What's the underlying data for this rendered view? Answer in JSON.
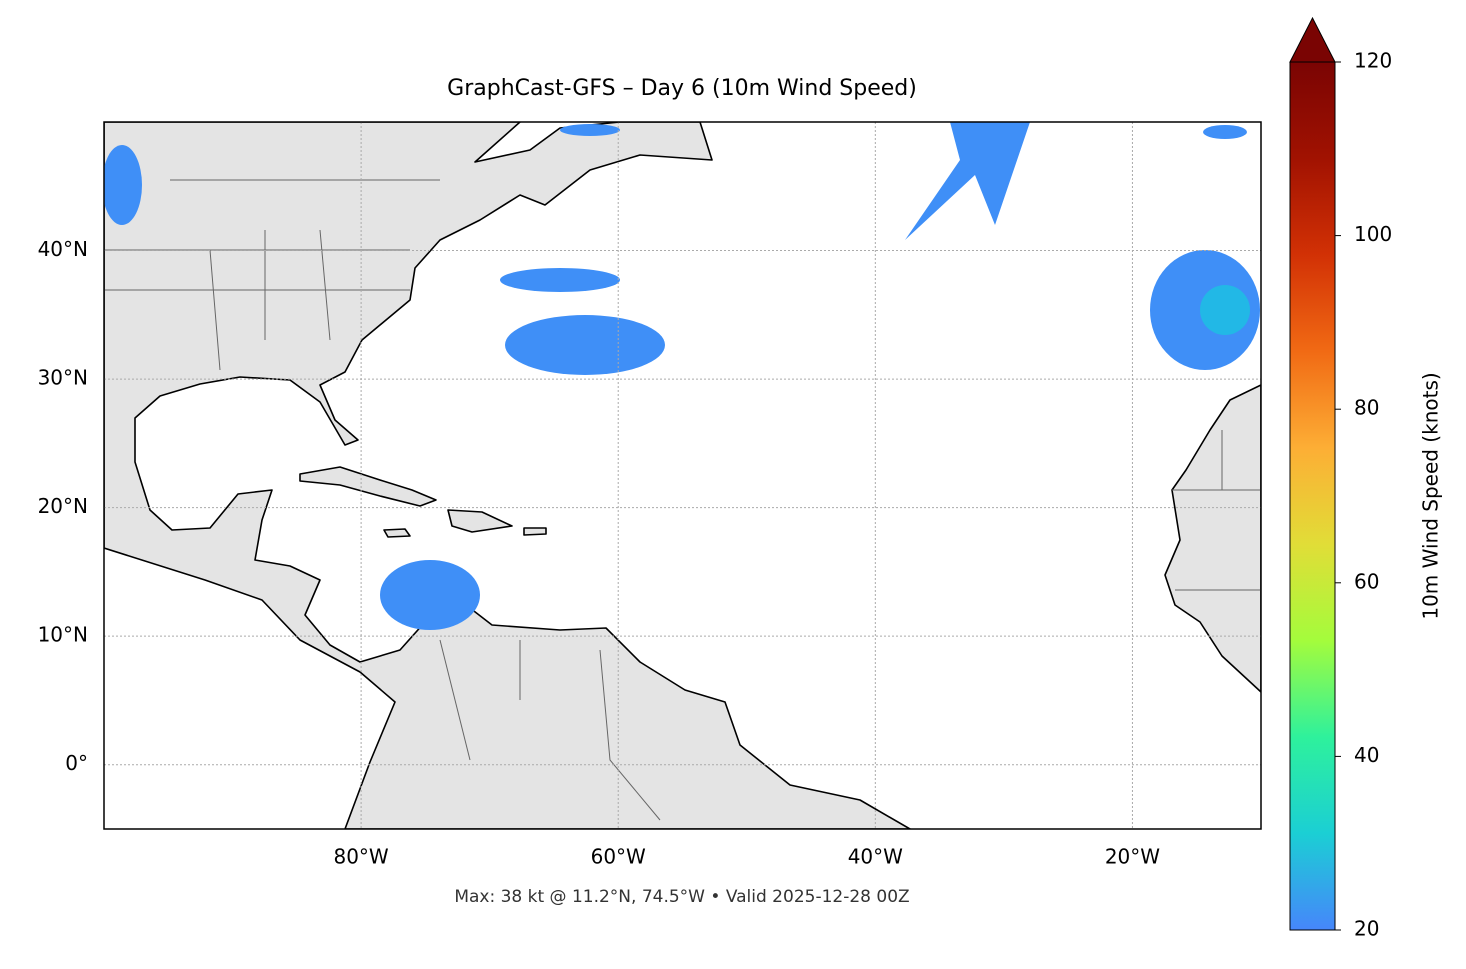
{
  "chart_data": {
    "type": "map",
    "title": "GraphCast-GFS – Day 6 (10m Wind Speed)",
    "footnote": "Max: 38 kt @ 11.2°N, 74.5°W • Valid 2025-12-28 00Z",
    "xlim": [
      -100,
      -10
    ],
    "ylim": [
      -5,
      50
    ],
    "xticks": [
      {
        "value": -80,
        "label": "80°W"
      },
      {
        "value": -60,
        "label": "60°W"
      },
      {
        "value": -40,
        "label": "40°W"
      },
      {
        "value": -20,
        "label": "20°W"
      }
    ],
    "yticks": [
      {
        "value": 0,
        "label": "0°"
      },
      {
        "value": 10,
        "label": "10°N"
      },
      {
        "value": 20,
        "label": "20°N"
      },
      {
        "value": 30,
        "label": "30°N"
      },
      {
        "value": 40,
        "label": "40°N"
      }
    ],
    "grid": true,
    "colorbar": {
      "label": "10m Wind Speed (knots)",
      "lim": [
        20,
        120
      ],
      "ticks": [
        20,
        40,
        60,
        80,
        100,
        120
      ],
      "colors": [
        "#4686fb",
        "#1bcfd4",
        "#2ef19c",
        "#a4fc3c",
        "#e1dd37",
        "#fdae35",
        "#f16a14",
        "#d23105",
        "#a11201",
        "#7a0403"
      ]
    }
  }
}
